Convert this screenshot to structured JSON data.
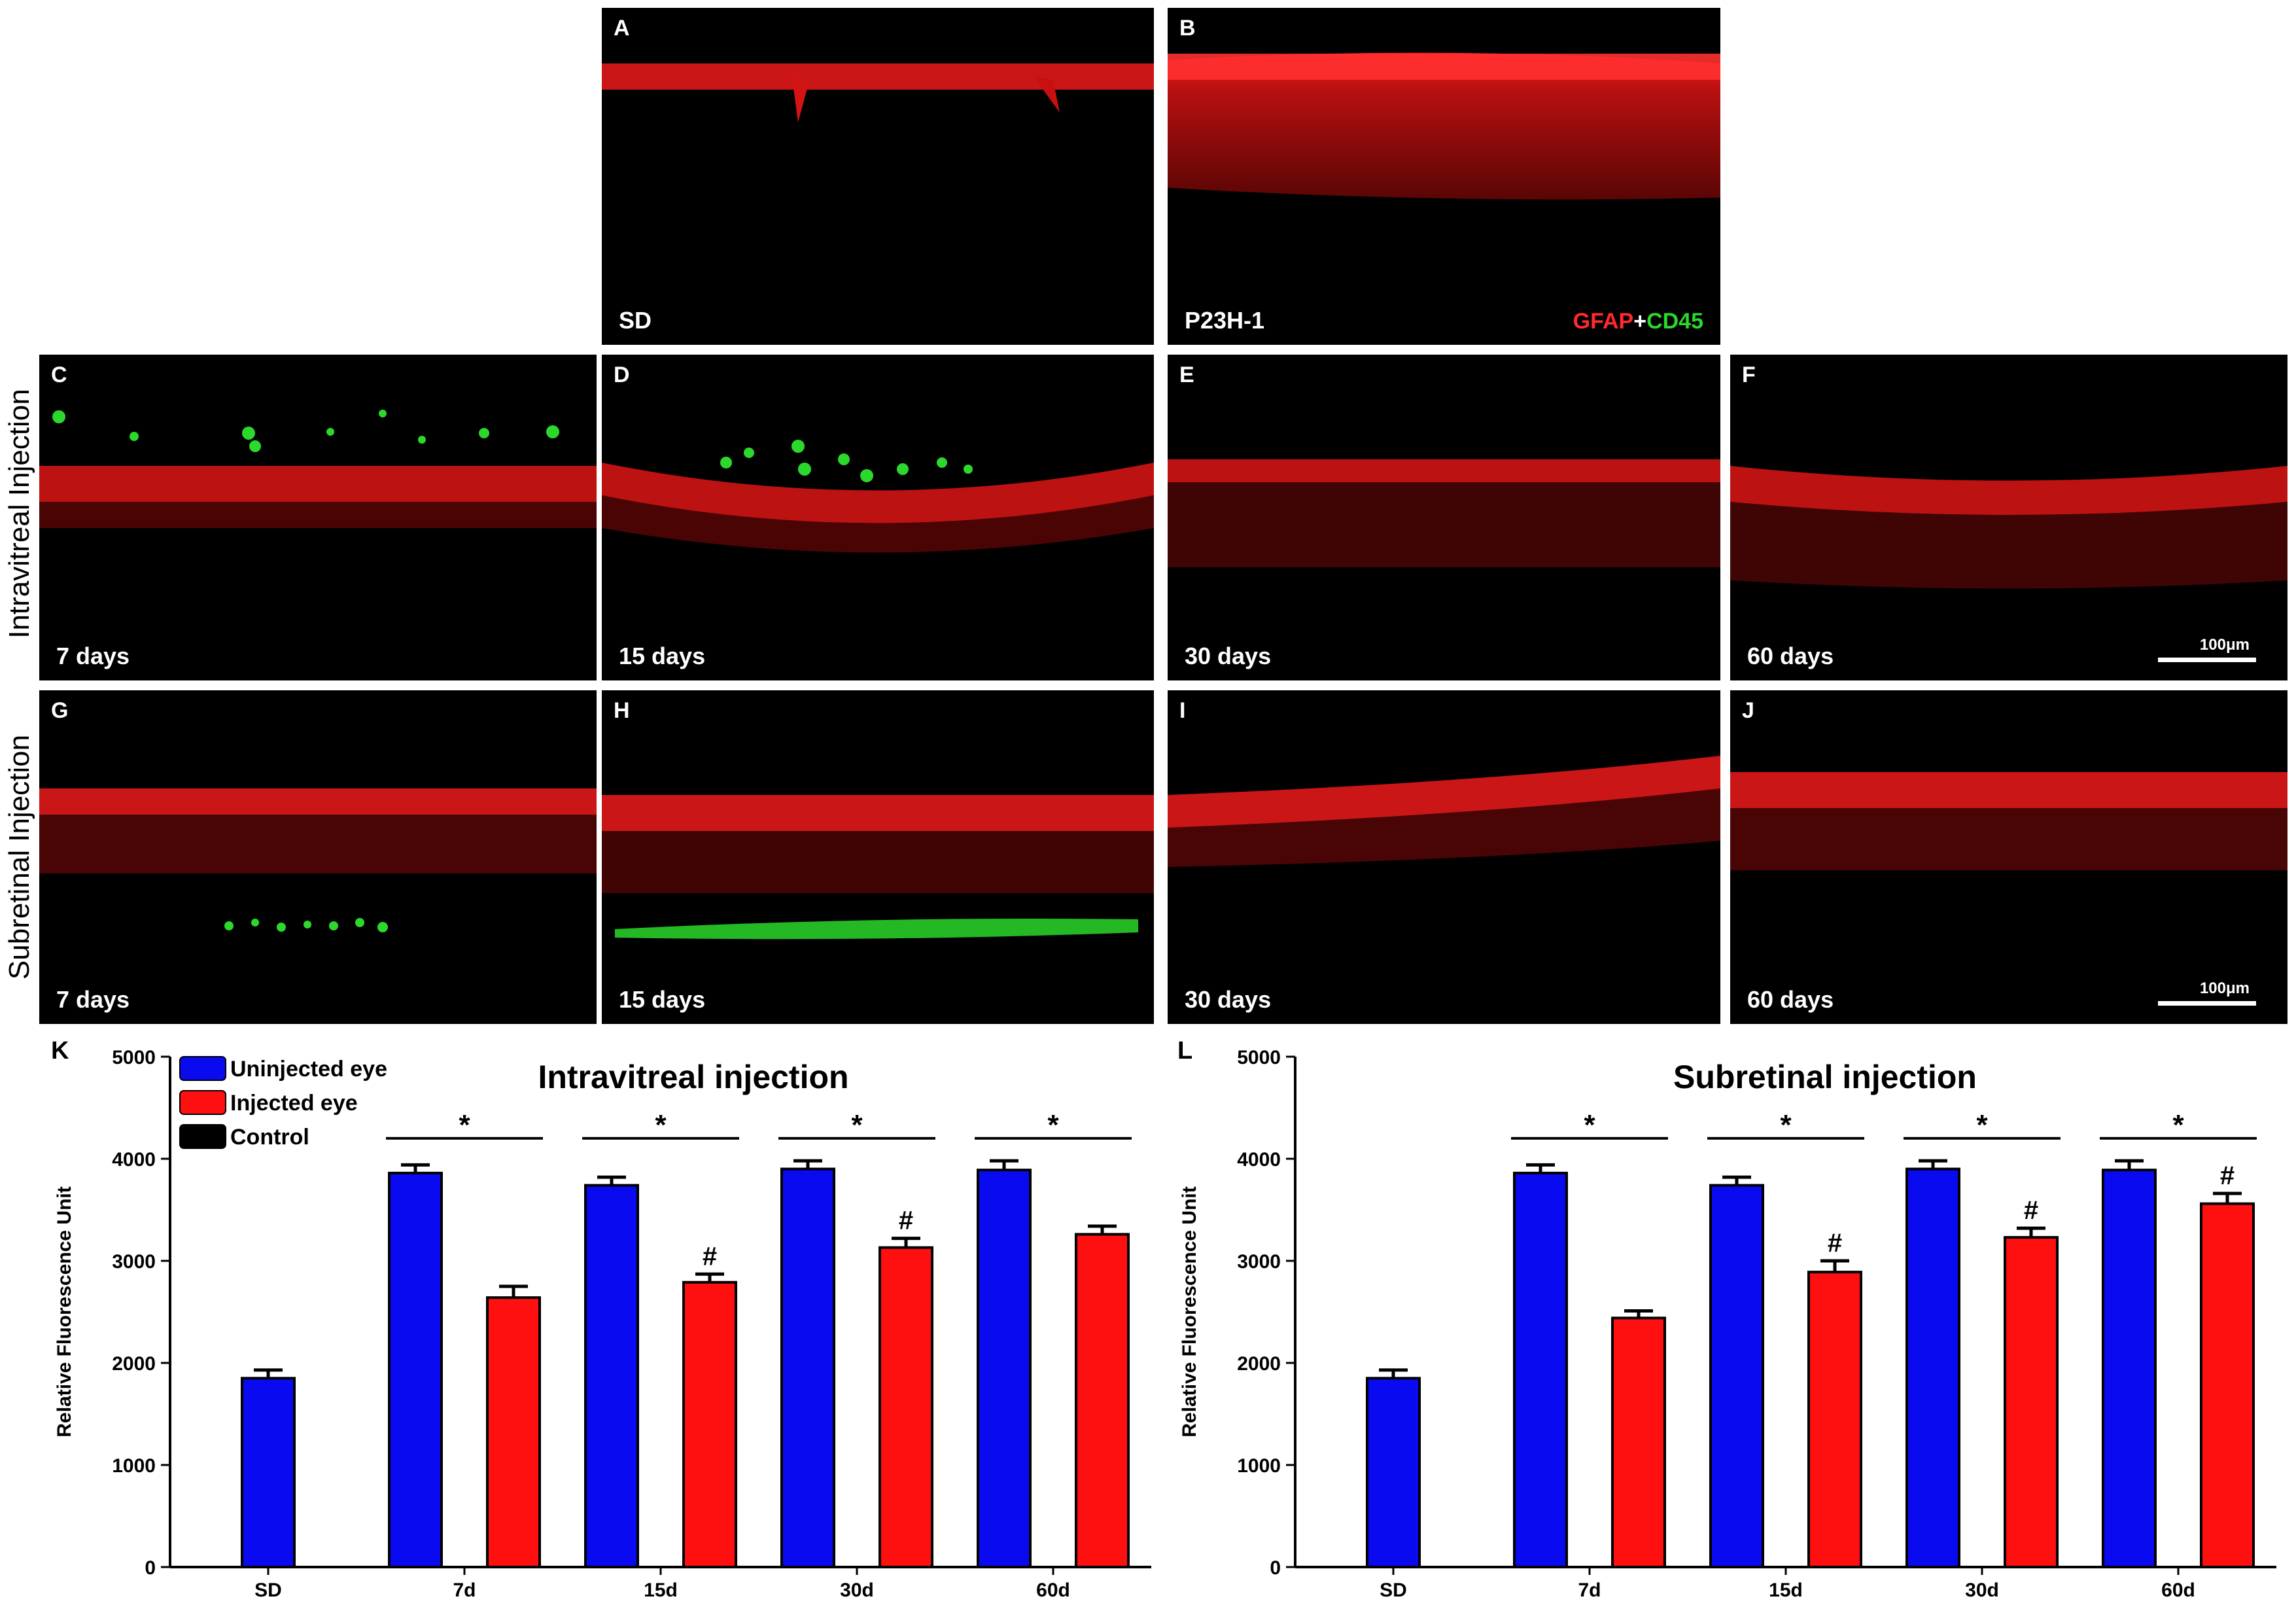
{
  "stain_legend": {
    "gfap": "GFAP",
    "plus": "+",
    "cd45": "CD45",
    "gfap_color": "#ff2a2a",
    "cd45_color": "#2bd82b"
  },
  "row_labels": {
    "intravitreal": "Intravitreal Injection",
    "subretinal": "Subretinal Injection"
  },
  "scale_bar": "100μm",
  "panels": [
    {
      "letter": "A",
      "caption": "SD"
    },
    {
      "letter": "B",
      "caption": "P23H-1"
    },
    {
      "letter": "C",
      "caption": "7 days"
    },
    {
      "letter": "D",
      "caption": "15 days"
    },
    {
      "letter": "E",
      "caption": "30 days"
    },
    {
      "letter": "F",
      "caption": "60 days"
    },
    {
      "letter": "G",
      "caption": "7 days"
    },
    {
      "letter": "H",
      "caption": "15 days"
    },
    {
      "letter": "I",
      "caption": "30 days"
    },
    {
      "letter": "J",
      "caption": "60 days"
    }
  ],
  "colors": {
    "uninjected": "#0a0af0",
    "injected": "#ff1010",
    "control": "#000000"
  },
  "chart_data": [
    {
      "panel": "K",
      "type": "bar",
      "title": "Intravitreal injection",
      "ylabel": "Relative Fluorescence Unit",
      "xlabel": "",
      "ylim": [
        0,
        5000
      ],
      "yticks": [
        0,
        1000,
        2000,
        3000,
        4000,
        5000
      ],
      "categories": [
        "SD",
        "7d",
        "15d",
        "30d",
        "60d"
      ],
      "legend": [
        "Uninjected eye",
        "Injected eye",
        "Control"
      ],
      "series": [
        {
          "name": "Uninjected eye",
          "values": [
            1850,
            3860,
            3740,
            3900,
            3890
          ],
          "errors": [
            80,
            80,
            80,
            80,
            90
          ]
        },
        {
          "name": "Injected eye",
          "values": [
            null,
            2640,
            2790,
            3130,
            3260
          ],
          "errors": [
            null,
            110,
            80,
            90,
            80
          ]
        }
      ],
      "significance": [
        "*",
        "*",
        "*",
        "*"
      ],
      "hash_marks": [
        "",
        "#",
        "#",
        ""
      ]
    },
    {
      "panel": "L",
      "type": "bar",
      "title": "Subretinal injection",
      "ylabel": "Relative Fluorescence Unit",
      "xlabel": "",
      "ylim": [
        0,
        5000
      ],
      "yticks": [
        0,
        1000,
        2000,
        3000,
        4000,
        5000
      ],
      "categories": [
        "SD",
        "7d",
        "15d",
        "30d",
        "60d"
      ],
      "series": [
        {
          "name": "Uninjected eye",
          "values": [
            1850,
            3860,
            3740,
            3900,
            3890
          ],
          "errors": [
            80,
            80,
            80,
            80,
            90
          ]
        },
        {
          "name": "Injected eye",
          "values": [
            null,
            2440,
            2890,
            3230,
            3560
          ],
          "errors": [
            null,
            70,
            110,
            90,
            100
          ]
        }
      ],
      "significance": [
        "*",
        "*",
        "*",
        "*"
      ],
      "hash_marks": [
        "",
        "#",
        "#",
        "#"
      ]
    }
  ]
}
